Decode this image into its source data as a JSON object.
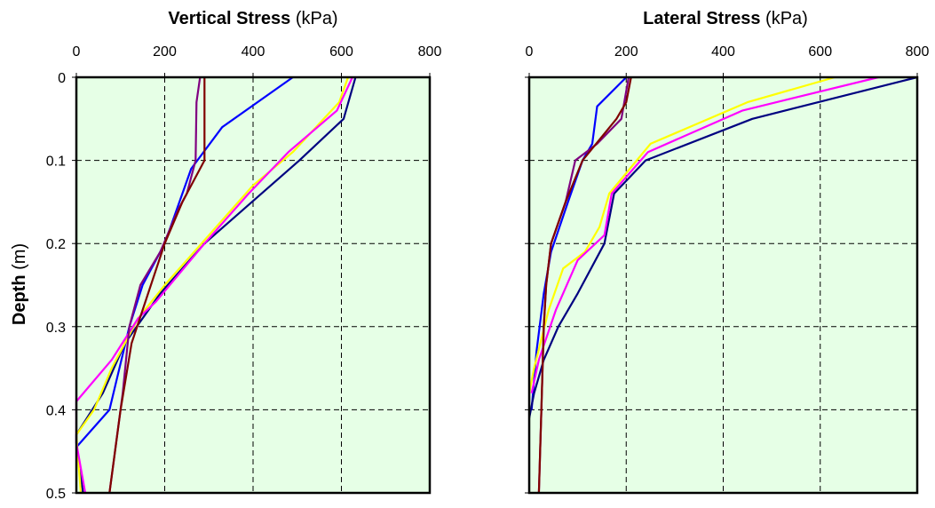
{
  "chart_data": [
    {
      "type": "line",
      "title_bold": "Vertical Stress",
      "title_unit": "(kPa)",
      "ylabel_bold": "Depth",
      "ylabel_unit": "(m)",
      "xlim": [
        0,
        800
      ],
      "ylim": [
        0,
        0.5
      ],
      "y_inverted": true,
      "x_axis_position": "top",
      "x_ticks": [
        "0",
        "200",
        "400",
        "600",
        "800"
      ],
      "y_ticks": [
        "0",
        "0.1",
        "0.2",
        "0.3",
        "0.4",
        "0.5"
      ],
      "grid": true,
      "plot_background": "#e6ffe6",
      "series": [
        {
          "color": "#0000ff",
          "points": [
            [
              490,
              0
            ],
            [
              330,
              0.06
            ],
            [
              260,
              0.11
            ],
            [
              200,
              0.2
            ],
            [
              150,
              0.25
            ],
            [
              120,
              0.3
            ],
            [
              75,
              0.4
            ],
            [
              0,
              0.445
            ]
          ]
        },
        {
          "color": "#000080",
          "points": [
            [
              632,
              0
            ],
            [
              605,
              0.05
            ],
            [
              505,
              0.1
            ],
            [
              290,
              0.2
            ],
            [
              190,
              0.26
            ],
            [
              110,
              0.32
            ],
            [
              60,
              0.38
            ],
            [
              0,
              0.43
            ],
            [
              0,
              0.44
            ],
            [
              15,
              0.5
            ]
          ]
        },
        {
          "color": "#ffff00",
          "points": [
            [
              615,
              0
            ],
            [
              595,
              0.03
            ],
            [
              490,
              0.09
            ],
            [
              400,
              0.13
            ],
            [
              300,
              0.19
            ],
            [
              200,
              0.25
            ],
            [
              140,
              0.29
            ],
            [
              80,
              0.35
            ],
            [
              40,
              0.4
            ],
            [
              0,
              0.43
            ],
            [
              10,
              0.5
            ]
          ]
        },
        {
          "color": "#ff00ff",
          "points": [
            [
              625,
              0
            ],
            [
              590,
              0.04
            ],
            [
              480,
              0.09
            ],
            [
              390,
              0.14
            ],
            [
              290,
              0.2
            ],
            [
              180,
              0.27
            ],
            [
              140,
              0.29
            ],
            [
              80,
              0.34
            ],
            [
              0,
              0.39
            ],
            [
              0,
              0.44
            ],
            [
              20,
              0.5
            ]
          ]
        },
        {
          "color": "#800080",
          "points": [
            [
              280,
              0
            ],
            [
              272,
              0.03
            ],
            [
              270,
              0.1
            ],
            [
              250,
              0.14
            ],
            [
              230,
              0.16
            ],
            [
              190,
              0.21
            ],
            [
              145,
              0.25
            ],
            [
              120,
              0.3
            ],
            [
              105,
              0.38
            ],
            [
              75,
              0.5
            ]
          ]
        },
        {
          "color": "#800000",
          "points": [
            [
              290,
              0
            ],
            [
              290,
              0.1
            ],
            [
              240,
              0.15
            ],
            [
              200,
              0.2
            ],
            [
              150,
              0.28
            ],
            [
              125,
              0.32
            ],
            [
              100,
              0.4
            ],
            [
              75,
              0.5
            ]
          ]
        }
      ]
    },
    {
      "type": "line",
      "title_bold": "Lateral Stress",
      "title_unit": "(kPa)",
      "xlim": [
        0,
        800
      ],
      "ylim": [
        0,
        0.5
      ],
      "y_inverted": true,
      "x_axis_position": "top",
      "x_ticks": [
        "0",
        "200",
        "400",
        "600",
        "800"
      ],
      "grid": true,
      "plot_background": "#e6ffe6",
      "series": [
        {
          "color": "#0000ff",
          "points": [
            [
              200,
              0
            ],
            [
              140,
              0.035
            ],
            [
              130,
              0.08
            ],
            [
              110,
              0.1
            ],
            [
              80,
              0.15
            ],
            [
              45,
              0.21
            ],
            [
              30,
              0.26
            ],
            [
              15,
              0.33
            ],
            [
              5,
              0.4
            ]
          ]
        },
        {
          "color": "#000080",
          "points": [
            [
              800,
              0
            ],
            [
              460,
              0.05
            ],
            [
              240,
              0.1
            ],
            [
              175,
              0.14
            ],
            [
              155,
              0.2
            ],
            [
              100,
              0.26
            ],
            [
              60,
              0.3
            ],
            [
              30,
              0.34
            ],
            [
              10,
              0.38
            ],
            [
              0,
              0.41
            ]
          ]
        },
        {
          "color": "#ffff00",
          "points": [
            [
              630,
              0
            ],
            [
              450,
              0.03
            ],
            [
              250,
              0.08
            ],
            [
              165,
              0.14
            ],
            [
              145,
              0.18
            ],
            [
              115,
              0.21
            ],
            [
              70,
              0.23
            ],
            [
              40,
              0.28
            ],
            [
              10,
              0.35
            ],
            [
              0,
              0.38
            ]
          ]
        },
        {
          "color": "#ff00ff",
          "points": [
            [
              720,
              0
            ],
            [
              440,
              0.04
            ],
            [
              245,
              0.09
            ],
            [
              170,
              0.14
            ],
            [
              155,
              0.19
            ],
            [
              100,
              0.22
            ],
            [
              55,
              0.28
            ],
            [
              20,
              0.34
            ],
            [
              5,
              0.38
            ]
          ]
        },
        {
          "color": "#800080",
          "points": [
            [
              205,
              0
            ],
            [
              190,
              0.05
            ],
            [
              140,
              0.08
            ],
            [
              95,
              0.1
            ],
            [
              75,
              0.15
            ],
            [
              45,
              0.2
            ],
            [
              35,
              0.25
            ],
            [
              30,
              0.3
            ],
            [
              25,
              0.4
            ],
            [
              20,
              0.5
            ]
          ]
        },
        {
          "color": "#800000",
          "points": [
            [
              210,
              0
            ],
            [
              200,
              0.03
            ],
            [
              180,
              0.05
            ],
            [
              110,
              0.1
            ],
            [
              75,
              0.15
            ],
            [
              45,
              0.2
            ],
            [
              35,
              0.25
            ],
            [
              30,
              0.3
            ],
            [
              25,
              0.4
            ],
            [
              20,
              0.5
            ]
          ]
        }
      ]
    }
  ]
}
